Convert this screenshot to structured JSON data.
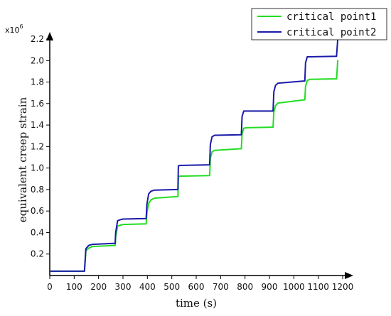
{
  "chart_data": {
    "type": "line",
    "xlabel": "time (s)",
    "ylabel": "equivalent creep strain",
    "y_multiplier": "x10",
    "y_multiplier_exp": "6",
    "xlim": [
      0,
      1200
    ],
    "ylim": [
      0,
      2.2
    ],
    "x_ticks": [
      0,
      100,
      200,
      300,
      400,
      500,
      600,
      700,
      800,
      900,
      1000,
      1100,
      1200
    ],
    "y_ticks": [
      0.2,
      0.4,
      0.6,
      0.8,
      1.0,
      1.2,
      1.4,
      1.6,
      1.8,
      2.0,
      2.2
    ],
    "y_tick_labels": [
      "0.2",
      "0.4",
      "0.6",
      "0.8",
      "1.0",
      "1.2",
      "1.4",
      "1.6",
      "1.8",
      "2.0",
      "2.2"
    ],
    "grid": false,
    "legend_position": "top-right",
    "series": [
      {
        "name": "critical point1",
        "color": "#22dd22",
        "x": [
          5,
          142,
          148,
          160,
          175,
          268,
          270,
          278,
          290,
          300,
          395,
          398,
          405,
          415,
          430,
          525,
          527,
          535,
          545,
          655,
          658,
          665,
          675,
          785,
          788,
          795,
          805,
          915,
          918,
          925,
          935,
          1045,
          1048,
          1055,
          1065,
          1175,
          1180
        ],
        "values": [
          0.04,
          0.04,
          0.23,
          0.255,
          0.27,
          0.28,
          0.36,
          0.46,
          0.47,
          0.475,
          0.48,
          0.58,
          0.67,
          0.705,
          0.72,
          0.735,
          0.92,
          0.925,
          0.925,
          0.93,
          1.09,
          1.15,
          1.165,
          1.18,
          1.32,
          1.37,
          1.375,
          1.38,
          1.52,
          1.58,
          1.605,
          1.635,
          1.76,
          1.815,
          1.825,
          1.83,
          2.0
        ]
      },
      {
        "name": "critical point2",
        "color": "#1a1aaa",
        "x": [
          5,
          142,
          148,
          160,
          175,
          268,
          270,
          278,
          290,
          300,
          395,
          398,
          405,
          415,
          430,
          525,
          527,
          535,
          545,
          655,
          658,
          665,
          675,
          785,
          788,
          795,
          805,
          915,
          918,
          925,
          935,
          1045,
          1048,
          1055,
          1065,
          1175,
          1180
        ],
        "values": [
          0.04,
          0.04,
          0.25,
          0.28,
          0.29,
          0.3,
          0.4,
          0.51,
          0.52,
          0.525,
          0.53,
          0.66,
          0.76,
          0.785,
          0.795,
          0.8,
          1.02,
          1.025,
          1.025,
          1.03,
          1.22,
          1.29,
          1.305,
          1.31,
          1.48,
          1.53,
          1.53,
          1.53,
          1.71,
          1.77,
          1.79,
          1.81,
          1.98,
          2.035,
          2.035,
          2.04,
          2.2
        ]
      }
    ]
  }
}
